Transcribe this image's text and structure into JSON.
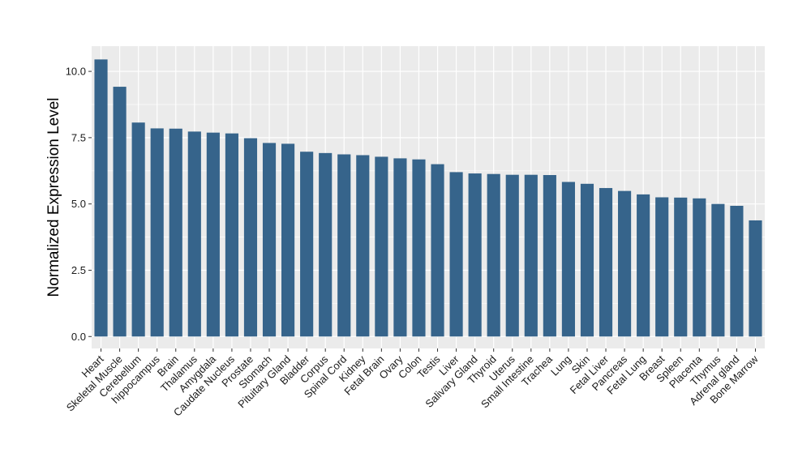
{
  "chart_data": {
    "type": "bar",
    "title": "",
    "xlabel": "",
    "ylabel": "Normalized Expression Level",
    "ylim": [
      -0.45,
      10.95
    ],
    "yticks": [
      0.0,
      2.5,
      5.0,
      7.5,
      10.0
    ],
    "ytick_labels": [
      "0.0",
      "2.5",
      "5.0",
      "7.5",
      "10.0"
    ],
    "grid": true,
    "legend": "none",
    "bar_color": "#36648b",
    "panel_background": "#ebebeb",
    "grid_color": "#ffffff",
    "categories": [
      "Heart",
      "Skeletal Muscle",
      "Cerebellum",
      "hippocampus",
      "Brain",
      "Thalamus",
      "Amygdala",
      "Caudate Nucleus",
      "Prostate",
      "Stomach",
      "Pituitary Gland",
      "Bladder",
      "Corpus",
      "Spinal Cord",
      "Kidney",
      "Fetal Brain",
      "Ovary",
      "Colon",
      "Testis",
      "Liver",
      "Salivary Gland",
      "Thyroid",
      "Uterus",
      "Small Intestine",
      "Trachea",
      "Lung",
      "Skin",
      "Fetal Liver",
      "Pancreas",
      "Fetal Lung",
      "Breast",
      "Spleen",
      "Placenta",
      "Thymus",
      "Adrenal gland",
      "Bone Marrow"
    ],
    "values": [
      10.45,
      9.42,
      8.07,
      7.85,
      7.84,
      7.73,
      7.69,
      7.66,
      7.48,
      7.3,
      7.27,
      6.97,
      6.92,
      6.87,
      6.84,
      6.78,
      6.72,
      6.68,
      6.5,
      6.2,
      6.15,
      6.13,
      6.1,
      6.1,
      6.09,
      5.83,
      5.76,
      5.6,
      5.49,
      5.36,
      5.25,
      5.24,
      5.21,
      5.0,
      4.93,
      4.38
    ]
  }
}
